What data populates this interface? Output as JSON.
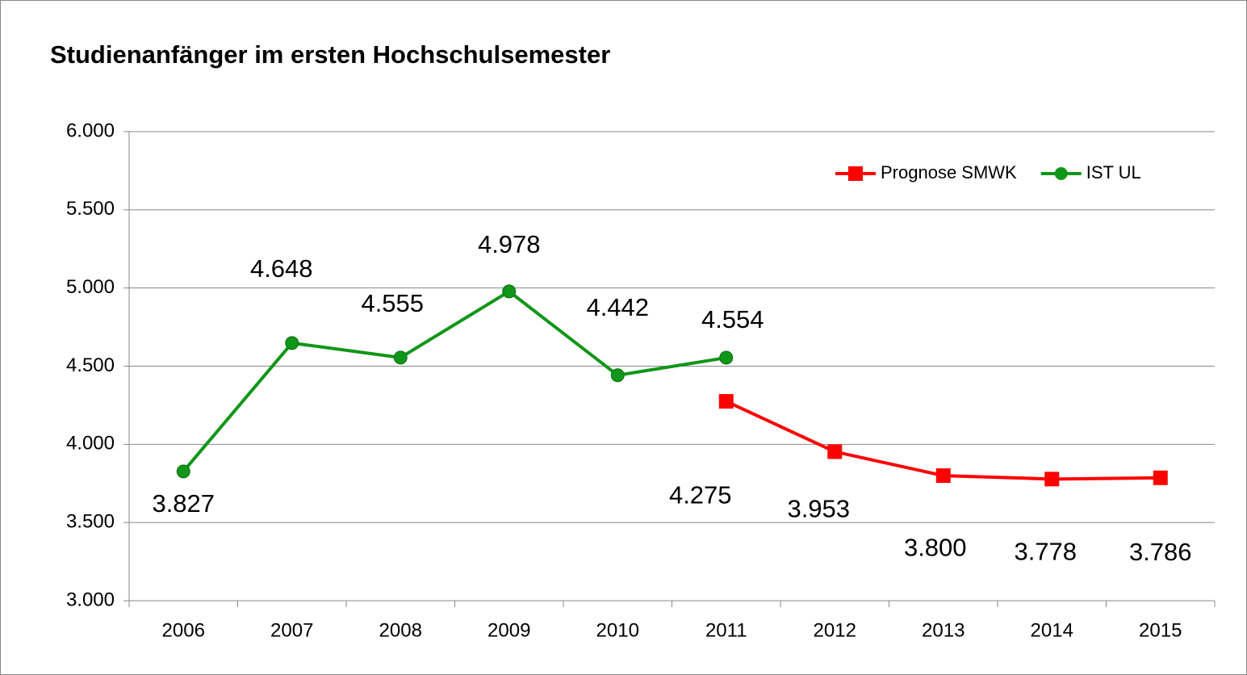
{
  "chart_data": {
    "type": "line",
    "title": "Studienanfänger im ersten Hochschulsemester",
    "categories": [
      "2006",
      "2007",
      "2008",
      "2009",
      "2010",
      "2011",
      "2012",
      "2013",
      "2014",
      "2015"
    ],
    "series": [
      {
        "name": "Prognose SMWK",
        "color": "#ff0000",
        "marker": "square",
        "values": [
          null,
          null,
          null,
          null,
          null,
          4275,
          3953,
          3800,
          3778,
          3786
        ],
        "value_labels": [
          null,
          null,
          null,
          null,
          null,
          "4.275",
          "3.953",
          "3.800",
          "3.778",
          "3.786"
        ]
      },
      {
        "name": "IST UL",
        "color": "#109618",
        "marker": "circle",
        "values": [
          3827,
          4648,
          4555,
          4978,
          4442,
          4554,
          null,
          null,
          null,
          null
        ],
        "value_labels": [
          "3.827",
          "4.648",
          "4.555",
          "4.978",
          "4.442",
          "4.554",
          null,
          null,
          null,
          null
        ]
      }
    ],
    "ylim": [
      3000,
      6000
    ],
    "yticks": [
      {
        "value": 3000,
        "label": "3.000"
      },
      {
        "value": 3500,
        "label": "3.500"
      },
      {
        "value": 4000,
        "label": "4.000"
      },
      {
        "value": 4500,
        "label": "4.500"
      },
      {
        "value": 5000,
        "label": "5.000"
      },
      {
        "value": 5500,
        "label": "5.500"
      },
      {
        "value": 6000,
        "label": "6.000"
      }
    ],
    "grid": true,
    "legend": "top-right"
  }
}
